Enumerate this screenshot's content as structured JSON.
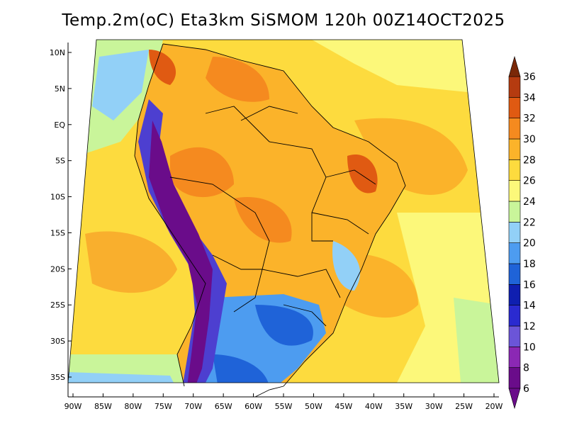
{
  "title": "Temp.2m(oC) Eta3km SiSMOM 120h 00Z14OCT2025",
  "map": {
    "lat_range": [
      -38,
      11.5
    ],
    "lon_range": [
      -91,
      -20
    ],
    "lat_ticks": [
      {
        "lat": 10,
        "label": "10N"
      },
      {
        "lat": 5,
        "label": "5N"
      },
      {
        "lat": 0,
        "label": "EQ"
      },
      {
        "lat": -5,
        "label": "5S"
      },
      {
        "lat": -10,
        "label": "10S"
      },
      {
        "lat": -15,
        "label": "15S"
      },
      {
        "lat": -20,
        "label": "20S"
      },
      {
        "lat": -25,
        "label": "25S"
      },
      {
        "lat": -30,
        "label": "30S"
      },
      {
        "lat": -35,
        "label": "35S"
      }
    ],
    "lon_ticks": [
      {
        "lon": -90,
        "label": "90W"
      },
      {
        "lon": -85,
        "label": "85W"
      },
      {
        "lon": -80,
        "label": "80W"
      },
      {
        "lon": -75,
        "label": "75W"
      },
      {
        "lon": -70,
        "label": "70W"
      },
      {
        "lon": -65,
        "label": "65W"
      },
      {
        "lon": -60,
        "label": "60W"
      },
      {
        "lon": -55,
        "label": "55W"
      },
      {
        "lon": -50,
        "label": "50W"
      },
      {
        "lon": -45,
        "label": "45W"
      },
      {
        "lon": -40,
        "label": "40W"
      },
      {
        "lon": -35,
        "label": "35W"
      },
      {
        "lon": -30,
        "label": "30W"
      },
      {
        "lon": -25,
        "label": "25W"
      },
      {
        "lon": -20,
        "label": "20W"
      }
    ]
  },
  "colorbar": {
    "levels": [
      {
        "value": "6",
        "color": "#6a0c8a"
      },
      {
        "value": "8",
        "color": "#8b28b4"
      },
      {
        "value": "10",
        "color": "#6b55d8"
      },
      {
        "value": "12",
        "color": "#2a2ad0"
      },
      {
        "value": "14",
        "color": "#0f1fb0"
      },
      {
        "value": "16",
        "color": "#1f63d8"
      },
      {
        "value": "18",
        "color": "#4d9cf0"
      },
      {
        "value": "20",
        "color": "#92d0f7"
      },
      {
        "value": "22",
        "color": "#c9f59a"
      },
      {
        "value": "24",
        "color": "#fcf87a"
      },
      {
        "value": "26",
        "color": "#fddb3e"
      },
      {
        "value": "28",
        "color": "#fbb32a"
      },
      {
        "value": "30",
        "color": "#f58a1f"
      },
      {
        "value": "32",
        "color": "#e05a12"
      },
      {
        "value": "34",
        "color": "#b53b10"
      },
      {
        "value": "36",
        "color": "#7a2808"
      }
    ]
  }
}
